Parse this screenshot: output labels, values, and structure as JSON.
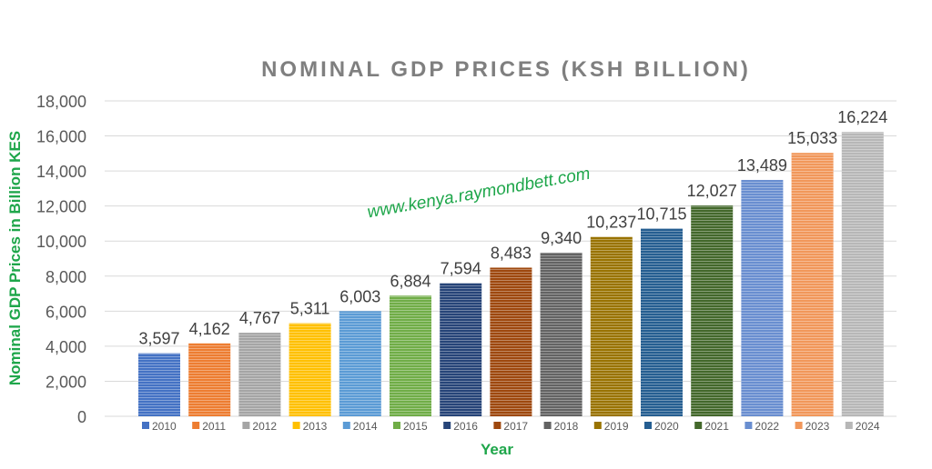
{
  "chart_data": {
    "type": "bar",
    "title": "NOMINAL GDP PRICES (KSH BILLION)",
    "xlabel": "Year",
    "ylabel": "Nominal GDP Prices in Billion KES",
    "ylim": [
      0,
      18000
    ],
    "yticks": [
      0,
      2000,
      4000,
      6000,
      8000,
      10000,
      12000,
      14000,
      16000,
      18000
    ],
    "ytick_labels": [
      "0",
      "2,000",
      "4,000",
      "6,000",
      "8,000",
      "10,000",
      "12,000",
      "14,000",
      "16,000",
      "18,000"
    ],
    "grid": true,
    "legend_position": "bottom",
    "categories": [
      "2010",
      "2011",
      "2012",
      "2013",
      "2014",
      "2015",
      "2016",
      "2017",
      "2018",
      "2019",
      "2020",
      "2021",
      "2022",
      "2023",
      "2024"
    ],
    "values": [
      3597,
      4162,
      4767,
      5311,
      6003,
      6884,
      7594,
      8483,
      9340,
      10237,
      10715,
      12027,
      13489,
      15033,
      16224
    ],
    "data_labels": [
      "3,597",
      "4,162",
      "4,767",
      "5,311",
      "6,003",
      "6,884",
      "7,594",
      "8,483",
      "9,340",
      "10,237",
      "10,715",
      "12,027",
      "13,489",
      "15,033",
      "16,224"
    ],
    "colors": [
      "#4472C4",
      "#ED7D31",
      "#A5A5A5",
      "#FFC000",
      "#5B9BD5",
      "#70AD47",
      "#264478",
      "#9E480E",
      "#636363",
      "#997300",
      "#255E91",
      "#43682B",
      "#698ED0",
      "#F1975A",
      "#B7B7B7"
    ],
    "watermark": "www.kenya.raymondbett.com",
    "label_color": "#1EA64A"
  }
}
